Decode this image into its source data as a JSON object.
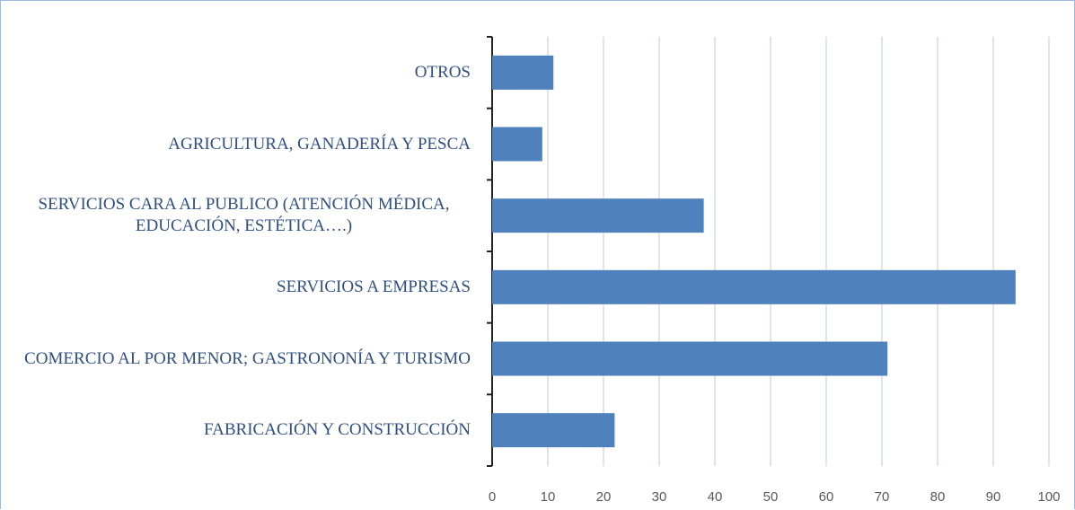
{
  "chart_data": {
    "type": "bar",
    "orientation": "horizontal",
    "categories": [
      "OTROS",
      "AGRICULTURA,  GANADERÍA  Y PESCA",
      "SERVICIOS CARA AL PUBLICO (ATENCIÓN MÉDICA, EDUCACIÓN, ESTÉTICA….)",
      "SERVICIOS  A  EMPRESAS",
      "COMERCIO AL POR MENOR; GASTRONONÍA  Y TURISMO",
      "FABRICACIÓN  Y CONSTRUCCIÓN"
    ],
    "values": [
      11,
      9,
      38,
      94,
      71,
      22
    ],
    "color": "#4f81bd",
    "xlim": [
      0,
      100
    ],
    "xticks": [
      0,
      10,
      20,
      30,
      40,
      50,
      60,
      70,
      80,
      90,
      100
    ],
    "grid": true
  }
}
